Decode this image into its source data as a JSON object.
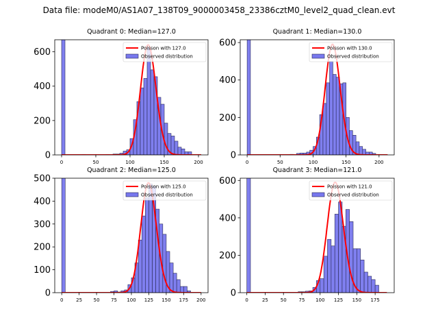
{
  "suptitle": "Data file: modeM0/AS1A07_138T09_9000003458_23386cztM0_level2_quad_clean.evt",
  "chart_data": [
    {
      "type": "bar",
      "title": "Quadrant 0: Median=127.0",
      "xlim": [
        -10,
        214
      ],
      "ylim": [
        0,
        670
      ],
      "xticks": [
        0,
        50,
        100,
        150,
        200
      ],
      "yticks": [
        0,
        200,
        400,
        600
      ],
      "bin_width": 5,
      "legend": [
        "Poisson with 127.0",
        "Observed distribution"
      ],
      "legend_position": "upper-right",
      "poisson_mean": 127.0,
      "poisson_peak": 640,
      "bins": [
        0,
        30,
        65,
        75,
        80,
        85,
        90,
        95,
        100,
        105,
        110,
        115,
        120,
        125,
        130,
        135,
        140,
        145,
        150,
        155,
        160,
        165,
        170,
        175,
        180,
        185
      ],
      "values": [
        700,
        3,
        3,
        5,
        5,
        10,
        22,
        30,
        95,
        205,
        310,
        390,
        445,
        625,
        495,
        455,
        335,
        295,
        185,
        125,
        110,
        80,
        45,
        35,
        18,
        18
      ]
    },
    {
      "type": "bar",
      "title": "Quadrant 1: Median=130.0",
      "xlim": [
        -10.5,
        223
      ],
      "ylim": [
        0,
        615
      ],
      "xticks": [
        0,
        50,
        100,
        150,
        200
      ],
      "yticks": [
        0,
        200,
        400,
        600
      ],
      "bin_width": 5,
      "legend": [
        "Poisson with 130.0",
        "Observed distribution"
      ],
      "legend_position": "upper-right",
      "poisson_mean": 130.0,
      "poisson_peak": 590,
      "bins": [
        0,
        65,
        75,
        80,
        85,
        90,
        95,
        100,
        105,
        110,
        115,
        120,
        125,
        130,
        135,
        140,
        145,
        150,
        155,
        160,
        165,
        170,
        175,
        180,
        185,
        190
      ],
      "values": [
        700,
        3,
        8,
        10,
        10,
        15,
        25,
        45,
        95,
        215,
        275,
        385,
        500,
        430,
        415,
        380,
        385,
        200,
        130,
        105,
        70,
        45,
        30,
        15,
        15,
        8
      ]
    },
    {
      "type": "bar",
      "title": "Quadrant 2: Median=125.0",
      "xlim": [
        -10,
        210
      ],
      "ylim": [
        0,
        500
      ],
      "xticks": [
        0,
        25,
        50,
        75,
        100,
        125,
        150,
        175,
        200
      ],
      "yticks": [
        0,
        100,
        200,
        300,
        400,
        500
      ],
      "bin_width": 5,
      "legend": [
        "Poisson with 125.0",
        "Observed distribution"
      ],
      "legend_position": "upper-right",
      "poisson_mean": 125.0,
      "poisson_peak": 480,
      "bins": [
        0,
        70,
        75,
        80,
        85,
        90,
        95,
        100,
        105,
        110,
        115,
        120,
        125,
        130,
        135,
        140,
        145,
        150,
        155,
        160,
        165,
        170,
        175,
        180
      ],
      "values": [
        600,
        5,
        8,
        3,
        8,
        12,
        35,
        65,
        130,
        230,
        335,
        415,
        475,
        465,
        365,
        300,
        255,
        180,
        130,
        85,
        57,
        27,
        27,
        8
      ]
    },
    {
      "type": "bar",
      "title": "Quadrant 3: Median=121.0",
      "xlim": [
        -9,
        201
      ],
      "ylim": [
        0,
        612
      ],
      "xticks": [
        0,
        25,
        50,
        75,
        100,
        125,
        150,
        175
      ],
      "yticks": [
        0,
        200,
        400,
        600
      ],
      "bin_width": 5,
      "legend": [
        "Poisson with 121.0",
        "Observed distribution"
      ],
      "legend_position": "upper-right",
      "poisson_mean": 121.0,
      "poisson_peak": 590,
      "bins": [
        0,
        70,
        75,
        80,
        85,
        90,
        95,
        100,
        105,
        110,
        115,
        120,
        125,
        130,
        135,
        140,
        145,
        150,
        155,
        160,
        165,
        170,
        175
      ],
      "values": [
        700,
        5,
        5,
        8,
        10,
        28,
        65,
        75,
        195,
        285,
        250,
        420,
        485,
        355,
        445,
        380,
        235,
        235,
        175,
        110,
        88,
        70,
        40
      ]
    }
  ],
  "colors": {
    "bar_fill": "#7878ee",
    "bar_edge": "#2a2a55",
    "poisson_line": "#ff0000"
  }
}
